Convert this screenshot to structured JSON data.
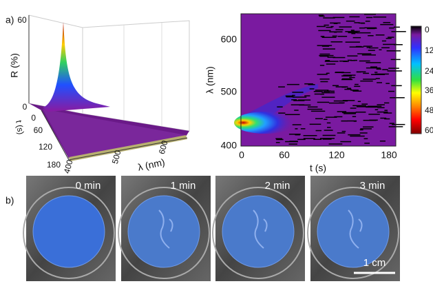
{
  "panel_a": {
    "label": "a)",
    "surface": {
      "z_label": "R (%)",
      "z_ticks": [
        "60",
        "0"
      ],
      "t_label": "t (s)",
      "t_ticks": [
        "0",
        "60",
        "120",
        "180"
      ],
      "lambda_label": "λ (nm)",
      "lambda_ticks": [
        "400",
        "500",
        "600"
      ]
    },
    "map": {
      "y_label": "λ (nm)",
      "y_ticks": [
        "600",
        "500",
        "400"
      ],
      "x_label": "t (s)",
      "x_ticks": [
        "0",
        "60",
        "120",
        "180"
      ],
      "colorbar_ticks": [
        "0",
        "12",
        "24",
        "36",
        "48",
        "60"
      ]
    }
  },
  "panel_b": {
    "label": "b)",
    "photos": [
      "0 min",
      "1 min",
      "2 min",
      "3 min"
    ],
    "scale_bar": "1 cm"
  }
}
